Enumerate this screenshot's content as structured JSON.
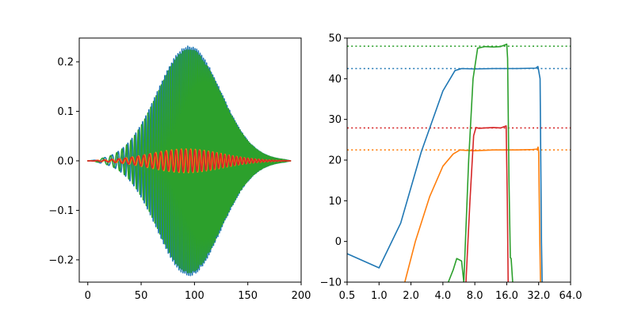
{
  "colors": {
    "blue": "#1f77b4",
    "orange": "#ff7f0e",
    "green": "#2ca02c",
    "red": "#d62728"
  },
  "chart_data": [
    {
      "type": "line",
      "title": "",
      "xlabel": "",
      "ylabel": "",
      "xlim": [
        -8,
        200
      ],
      "ylim": [
        -0.245,
        0.248
      ],
      "xticks": [
        0,
        50,
        100,
        150,
        200
      ],
      "xtick_labels": [
        "0",
        "50",
        "100",
        "150",
        "200"
      ],
      "yticks": [
        -0.2,
        -0.1,
        0.0,
        0.1,
        0.2
      ],
      "ytick_labels": [
        "−0.2",
        "−0.1",
        "0.0",
        "0.1",
        "0.2"
      ],
      "grid": false,
      "series": [
        {
          "color": "blue",
          "n_samples": 193,
          "peak_amplitude": 0.23,
          "peak_x": 95,
          "oscillation_periods_approx": [
            18,
            2.5
          ]
        },
        {
          "color": "green",
          "n_samples": 193,
          "peak_amplitude": 0.225,
          "peak_x": 95,
          "oscillation_periods_approx": [
            20,
            2.6
          ]
        },
        {
          "color": "orange",
          "n_samples": 193,
          "peak_amplitude": 0.022,
          "peak_x": 95,
          "oscillation_periods_approx": [
            8,
            4.6
          ]
        },
        {
          "color": "red",
          "n_samples": 193,
          "peak_amplitude": 0.024,
          "peak_x": 95,
          "oscillation_periods_approx": [
            8,
            4.6
          ]
        }
      ]
    },
    {
      "type": "line",
      "title": "",
      "xlabel": "",
      "ylabel": "",
      "xscale": "log2",
      "xlim": [
        0.5,
        64.0
      ],
      "ylim": [
        -10,
        50
      ],
      "xticks": [
        0.5,
        1.0,
        2.0,
        4.0,
        8.0,
        16.0,
        32.0,
        64.0
      ],
      "xtick_labels": [
        "0.5",
        "1.0",
        "2.0",
        "4.0",
        "8.0",
        "16.0",
        "32.0",
        "64.0"
      ],
      "yticks": [
        -10,
        0,
        10,
        20,
        30,
        40,
        50
      ],
      "ytick_labels": [
        "−10",
        "0",
        "10",
        "20",
        "30",
        "40",
        "50"
      ],
      "grid": false,
      "reference_lines": [
        {
          "color": "green",
          "y": 48.0,
          "style": "dotted"
        },
        {
          "color": "blue",
          "y": 42.5,
          "style": "dotted"
        },
        {
          "color": "red",
          "y": 27.9,
          "style": "dotted"
        },
        {
          "color": "orange",
          "y": 22.5,
          "style": "dotted"
        }
      ],
      "series": [
        {
          "color": "blue",
          "x": [
            0.5,
            1.0,
            1.6,
            2.5,
            4.0,
            5.2,
            6.0,
            8.0,
            12.0,
            20.0,
            30.0,
            31.5,
            33.0,
            34.0,
            34.5
          ],
          "y": [
            -3.0,
            -6.5,
            4.5,
            22.0,
            37.0,
            42.0,
            42.5,
            42.4,
            42.5,
            42.5,
            42.6,
            43.0,
            40.0,
            0.0,
            -10.0
          ]
        },
        {
          "color": "orange",
          "x": [
            1.75,
            2.2,
            3.0,
            4.0,
            5.0,
            5.8,
            6.5,
            8.0,
            12.0,
            20.0,
            28.0,
            31.0,
            31.6,
            32.0,
            32.8,
            33.3
          ],
          "y": [
            -10.0,
            0.0,
            11.0,
            18.5,
            21.5,
            22.5,
            22.4,
            22.3,
            22.5,
            22.5,
            22.6,
            22.7,
            23.2,
            22.0,
            0.0,
            -10.0
          ]
        },
        {
          "color": "green",
          "x": [
            4.5,
            5.0,
            5.4,
            5.7,
            6.0,
            6.3,
            7.0,
            7.7,
            8.5,
            10.0,
            12.0,
            14.0,
            16.0,
            16.3,
            16.8,
            17.3,
            17.6,
            18.2
          ],
          "y": [
            -10.0,
            -7.0,
            -4.2,
            -4.5,
            -4.8,
            -10.0,
            20.0,
            40.0,
            47.5,
            47.9,
            47.8,
            47.9,
            48.5,
            45.0,
            15.0,
            -4.0,
            -4.2,
            -10.0
          ]
        },
        {
          "color": "red",
          "x": [
            6.6,
            7.2,
            7.8,
            8.2,
            8.8,
            10.0,
            12.0,
            14.0,
            15.8,
            16.2,
            16.5
          ],
          "y": [
            -10.0,
            10.0,
            26.0,
            28.0,
            27.8,
            27.9,
            28.0,
            27.9,
            28.4,
            10.0,
            -10.0
          ]
        }
      ]
    }
  ]
}
